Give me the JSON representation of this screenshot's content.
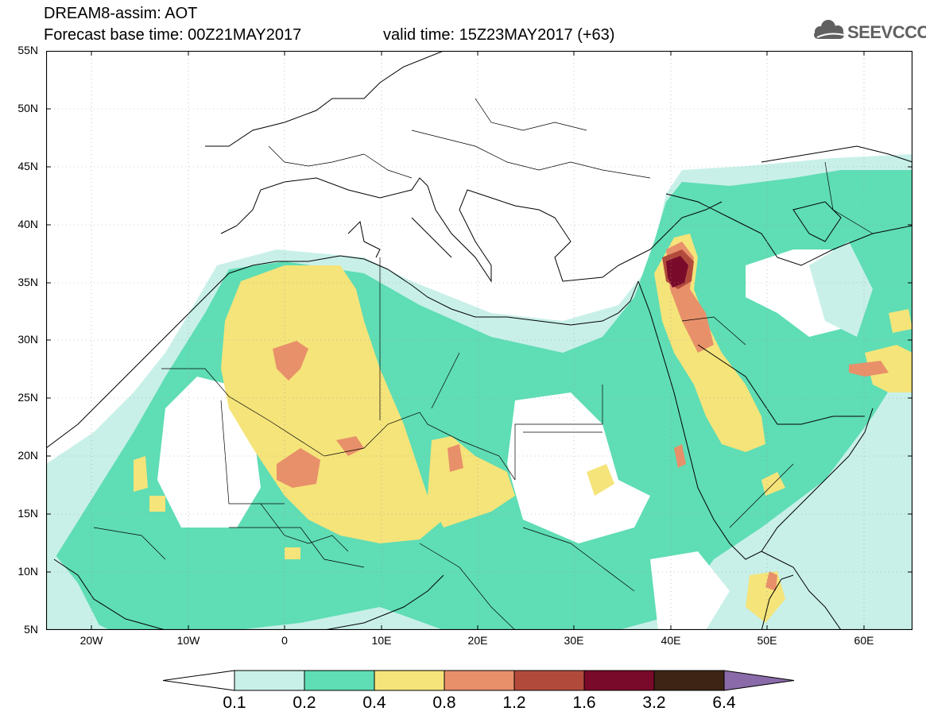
{
  "header": {
    "title": "DREAM8-assim: AOT",
    "base_time": "Forecast base time: 00Z21MAY2017",
    "valid_time": "valid time: 15Z23MAY2017 (+63)",
    "logo_text": "SEEVCCC"
  },
  "axes": {
    "lat_labels": [
      "55N",
      "50N",
      "45N",
      "40N",
      "35N",
      "30N",
      "25N",
      "20N",
      "15N",
      "10N",
      "5N"
    ],
    "lat_values": [
      55,
      50,
      45,
      40,
      35,
      30,
      25,
      20,
      15,
      10,
      5
    ],
    "lon_labels": [
      "20W",
      "10W",
      "0",
      "10E",
      "20E",
      "30E",
      "40E",
      "50E",
      "60E"
    ],
    "lon_values": [
      -20,
      -10,
      0,
      10,
      20,
      30,
      40,
      50,
      60
    ],
    "lon_range": [
      -25,
      65
    ],
    "lat_range": [
      5,
      55
    ],
    "grid": "dotted"
  },
  "legend": {
    "variable": "AOT",
    "levels": [
      "0.1",
      "0.2",
      "0.4",
      "0.8",
      "1.2",
      "1.6",
      "3.2",
      "6.4"
    ],
    "colors": [
      "#c8f0e8",
      "#5fddb5",
      "#f5e47a",
      "#e8906a",
      "#b24a3c",
      "#7a0a2a",
      "#3d2414",
      "#8a6aa8"
    ],
    "below_color": "#ffffff"
  },
  "palette": {
    "land_line": "#000000",
    "c01": "#c8f0e8",
    "c02": "#5fddb5",
    "c04": "#f5e47a",
    "c08": "#e8906a",
    "c12": "#b24a3c",
    "c16": "#7a0a2a"
  }
}
